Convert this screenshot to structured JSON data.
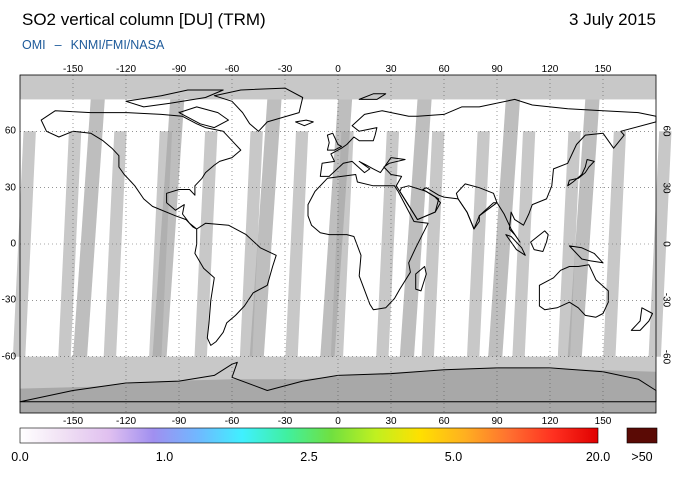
{
  "header": {
    "title": "SO2 vertical column [DU] (TRM)",
    "date": "3 July 2015",
    "credit_left": "OMI",
    "credit_dash": "–",
    "credit_right": "KNMI/FMI/NASA"
  },
  "map": {
    "projection": "equirectangular",
    "lon_range": [
      -180,
      180
    ],
    "lat_range": [
      -90,
      90
    ],
    "lon_ticks": [
      "-150",
      "-120",
      "-90",
      "-60",
      "-30",
      "0",
      "30",
      "60",
      "90",
      "120",
      "150"
    ],
    "lat_ticks": [
      "60",
      "30",
      "0",
      "-30",
      "-60"
    ],
    "gridlines": "dotted",
    "colors": {
      "no_data": "#c8c8c8",
      "polar": "#a8a8a8",
      "coast": "#000000",
      "background": "#ffffff"
    }
  },
  "legend": {
    "labels": [
      "0.0",
      "1.0",
      "2.5",
      "5.0",
      "20.0",
      ">50"
    ],
    "stops": [
      "#ffffff",
      "#f0e0f4",
      "#e0c0f0",
      "#a08ff0",
      "#70b8ff",
      "#40f0ff",
      "#40f0a0",
      "#70e040",
      "#c0f020",
      "#ffe000",
      "#ffb020",
      "#ff7030",
      "#ff3020",
      "#e00000"
    ],
    "overflow_color": "#5a0a05"
  }
}
